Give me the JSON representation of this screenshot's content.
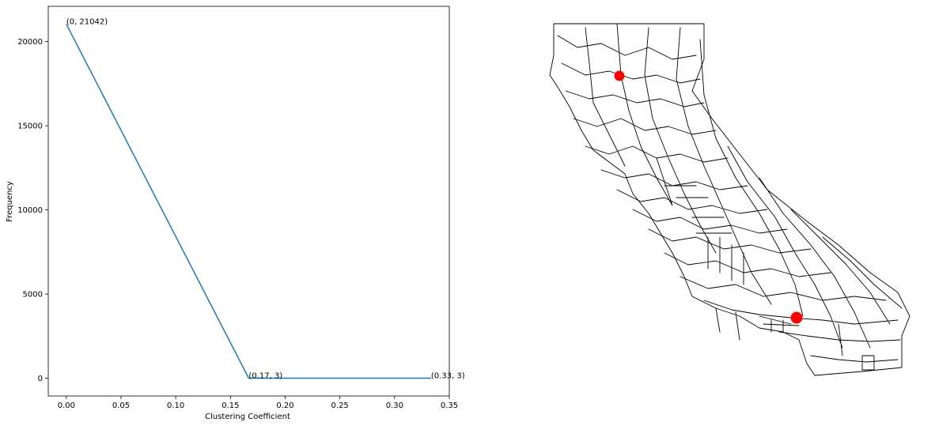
{
  "chart_data": {
    "type": "line",
    "title": "",
    "xlabel": "Clustering Coefficient",
    "ylabel": "Frequency",
    "xlim": [
      -0.0165,
      0.35
    ],
    "ylim": [
      -1052,
      22094
    ],
    "x_ticks": [
      0.0,
      0.05,
      0.1,
      0.15,
      0.2,
      0.25,
      0.3,
      0.35
    ],
    "x_tick_labels": [
      "0.00",
      "0.05",
      "0.10",
      "0.15",
      "0.20",
      "0.25",
      "0.30",
      "0.35"
    ],
    "y_ticks": [
      0,
      5000,
      10000,
      15000,
      20000
    ],
    "y_tick_labels": [
      "0",
      "5000",
      "10000",
      "15000",
      "20000"
    ],
    "grid": false,
    "series": [
      {
        "x": [
          0.0,
          0.1667,
          0.3333
        ],
        "y": [
          21042,
          3,
          3
        ],
        "color": "#1f77b4"
      }
    ],
    "annotations": [
      {
        "text": "(0, 21042)",
        "x": 0.0,
        "y": 21042
      },
      {
        "text": "(0.17, 3)",
        "x": 0.1667,
        "y": 3
      },
      {
        "text": "(0.33, 3)",
        "x": 0.3333,
        "y": 3
      }
    ]
  },
  "map": {
    "outline_color": "#000000",
    "highlight_color": "#ff0000",
    "highlights": [
      {
        "name": "northern-node"
      },
      {
        "name": "southern-node"
      }
    ]
  }
}
